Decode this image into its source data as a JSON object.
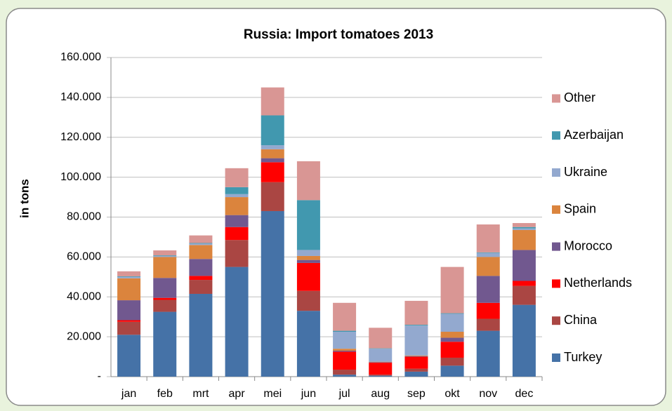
{
  "chart_data": {
    "type": "stacked_bar",
    "title": "Russia: Import tomatoes 2013",
    "y_label": "in tons",
    "categories": [
      "jan",
      "feb",
      "mrt",
      "apr",
      "mei",
      "jun",
      "jul",
      "aug",
      "sep",
      "okt",
      "nov",
      "dec"
    ],
    "series": [
      {
        "name": "Turkey",
        "color": "#4572a7",
        "values": [
          21000,
          32500,
          41500,
          55000,
          83000,
          33000,
          1000,
          500,
          2500,
          5500,
          23000,
          36000
        ]
      },
      {
        "name": "China",
        "color": "#aa4643",
        "values": [
          6500,
          6000,
          7000,
          13500,
          14500,
          10000,
          2500,
          500,
          1500,
          4000,
          6000,
          9500
        ]
      },
      {
        "name": "Netherlands",
        "color": "#ff0000",
        "values": [
          800,
          1000,
          2000,
          6500,
          10000,
          14000,
          9000,
          6000,
          6000,
          8000,
          8000,
          2500
        ]
      },
      {
        "name": "Morocco",
        "color": "#71588f",
        "values": [
          10000,
          10000,
          8500,
          6000,
          2000,
          1500,
          500,
          300,
          300,
          2000,
          13500,
          15500
        ]
      },
      {
        "name": "Spain",
        "color": "#db843d",
        "values": [
          11000,
          10500,
          7000,
          9000,
          4500,
          2000,
          1000,
          200,
          300,
          3000,
          9500,
          10000
        ]
      },
      {
        "name": "Ukraine",
        "color": "#93a9cf",
        "values": [
          700,
          500,
          700,
          1500,
          2000,
          3000,
          8500,
          6500,
          15000,
          9000,
          2000,
          800
        ]
      },
      {
        "name": "Azerbaijan",
        "color": "#4198af",
        "values": [
          300,
          300,
          300,
          3500,
          15000,
          25000,
          500,
          200,
          400,
          300,
          300,
          700
        ]
      },
      {
        "name": "Other",
        "color": "#d99694",
        "values": [
          2500,
          2500,
          3800,
          9500,
          14000,
          19500,
          14000,
          10300,
          12000,
          23200,
          14000,
          2000
        ]
      }
    ],
    "ylim": [
      0,
      160000
    ],
    "yticks": [
      {
        "value": 0,
        "label": "-"
      },
      {
        "value": 20000,
        "label": "20.000"
      },
      {
        "value": 40000,
        "label": "40.000"
      },
      {
        "value": 60000,
        "label": "60.000"
      },
      {
        "value": 80000,
        "label": "80.000"
      },
      {
        "value": 100000,
        "label": "100.000"
      },
      {
        "value": 120000,
        "label": "120.000"
      },
      {
        "value": 140000,
        "label": "140.000"
      },
      {
        "value": 160000,
        "label": "160.000"
      }
    ],
    "grid": true,
    "legend": "right"
  }
}
